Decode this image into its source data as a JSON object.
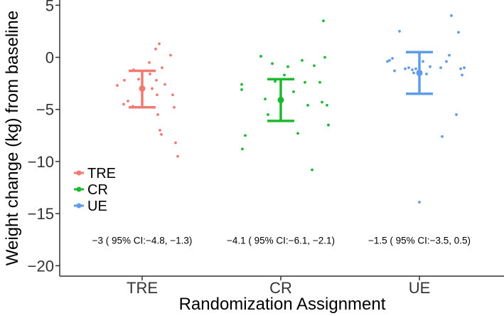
{
  "chart_data": {
    "type": "scatter",
    "title": "",
    "xlabel": "Randomization Assignment",
    "ylabel": "Weight change (kg) from baseline",
    "categories": [
      "TRE",
      "CR",
      "UE"
    ],
    "ylim": [
      -21,
      5.5
    ],
    "yticks": [
      5,
      0,
      -5,
      -10,
      -15,
      -20
    ],
    "ytick_labels": [
      "5",
      "0",
      "−5",
      "−10",
      "−15",
      "−20"
    ],
    "grid": false,
    "legend_position": "left",
    "series": [
      {
        "name": "TRE",
        "color": "#F07A72",
        "mean": -3.0,
        "ci_low": -4.8,
        "ci_high": -1.3,
        "points": [
          {
            "x": -0.35,
            "y": -2.7
          },
          {
            "x": -0.26,
            "y": -4.5
          },
          {
            "x": -0.2,
            "y": -4.2
          },
          {
            "x": -0.12,
            "y": -1.2
          },
          {
            "x": -0.13,
            "y": -4.7
          },
          {
            "x": -0.25,
            "y": -2.2
          },
          {
            "x": 0.1,
            "y": -0.5
          },
          {
            "x": 0.11,
            "y": -1.6
          },
          {
            "x": 0.14,
            "y": -3.0
          },
          {
            "x": 0.15,
            "y": -4.8
          },
          {
            "x": 0.19,
            "y": 0.8
          },
          {
            "x": 0.24,
            "y": 1.3
          },
          {
            "x": 0.2,
            "y": -2.2
          },
          {
            "x": 0.21,
            "y": -3.6
          },
          {
            "x": 0.22,
            "y": -5.5
          },
          {
            "x": 0.25,
            "y": -7.0
          },
          {
            "x": 0.27,
            "y": -7.4
          },
          {
            "x": 0.28,
            "y": -1.0
          },
          {
            "x": 0.32,
            "y": -2.6
          },
          {
            "x": 0.4,
            "y": 0.2
          },
          {
            "x": 0.43,
            "y": -3.6
          },
          {
            "x": 0.45,
            "y": -4.8
          },
          {
            "x": 0.47,
            "y": -8.2
          },
          {
            "x": 0.5,
            "y": -9.5
          },
          {
            "x": -0.05,
            "y": -2.1
          }
        ]
      },
      {
        "name": "CR",
        "color": "#1DB82E",
        "mean": -4.1,
        "ci_low": -6.1,
        "ci_high": -2.1,
        "points": [
          {
            "x": -0.55,
            "y": -2.6
          },
          {
            "x": -0.55,
            "y": -3.1
          },
          {
            "x": -0.54,
            "y": -8.8
          },
          {
            "x": -0.5,
            "y": -7.5
          },
          {
            "x": -0.28,
            "y": 0.1
          },
          {
            "x": -0.22,
            "y": -4.0
          },
          {
            "x": -0.18,
            "y": -5.5
          },
          {
            "x": -0.12,
            "y": -0.6
          },
          {
            "x": -0.08,
            "y": -2.3
          },
          {
            "x": 0.05,
            "y": -1.7
          },
          {
            "x": 0.1,
            "y": -0.9
          },
          {
            "x": 0.18,
            "y": -3.3
          },
          {
            "x": 0.24,
            "y": -7.3
          },
          {
            "x": 0.3,
            "y": -0.3
          },
          {
            "x": 0.34,
            "y": -2.4
          },
          {
            "x": 0.38,
            "y": -4.6
          },
          {
            "x": 0.44,
            "y": -10.8
          },
          {
            "x": 0.47,
            "y": -0.8
          },
          {
            "x": 0.55,
            "y": -2.4
          },
          {
            "x": 0.58,
            "y": -4.3
          },
          {
            "x": 0.6,
            "y": 3.5
          },
          {
            "x": 0.62,
            "y": 0.0
          },
          {
            "x": 0.65,
            "y": -4.6
          },
          {
            "x": 0.67,
            "y": -6.5
          },
          {
            "x": 0.0,
            "y": -4.1
          }
        ]
      },
      {
        "name": "UE",
        "color": "#5E9CEA",
        "mean": -1.5,
        "ci_low": -3.5,
        "ci_high": 0.5,
        "points": [
          {
            "x": -0.45,
            "y": -0.4
          },
          {
            "x": -0.42,
            "y": -0.3
          },
          {
            "x": -0.38,
            "y": -0.1
          },
          {
            "x": -0.35,
            "y": -1.3
          },
          {
            "x": -0.28,
            "y": 2.5
          },
          {
            "x": -0.2,
            "y": -1.1
          },
          {
            "x": -0.15,
            "y": -1.0
          },
          {
            "x": -0.1,
            "y": -1.2
          },
          {
            "x": -0.08,
            "y": -1.5
          },
          {
            "x": -0.05,
            "y": -1.1
          },
          {
            "x": 0.0,
            "y": -13.9
          },
          {
            "x": 0.05,
            "y": -0.4
          },
          {
            "x": 0.1,
            "y": -1.6
          },
          {
            "x": 0.15,
            "y": -0.9
          },
          {
            "x": 0.3,
            "y": -1.0
          },
          {
            "x": 0.32,
            "y": -7.6
          },
          {
            "x": 0.38,
            "y": -0.4
          },
          {
            "x": 0.42,
            "y": 0.2
          },
          {
            "x": 0.45,
            "y": 4.0
          },
          {
            "x": 0.52,
            "y": -5.5
          },
          {
            "x": 0.55,
            "y": 2.4
          },
          {
            "x": 0.58,
            "y": -1.1
          },
          {
            "x": 0.6,
            "y": -1.7
          },
          {
            "x": 0.63,
            "y": -1.0
          },
          {
            "x": -0.02,
            "y": -1.4
          }
        ]
      }
    ],
    "annotations": [
      "−3 ( 95% CI:−4.8, −1.3)",
      "−4.1 ( 95% CI:−6.1, −2.1)",
      "−1.5 ( 95% CI:−3.5, 0.5)"
    ]
  }
}
